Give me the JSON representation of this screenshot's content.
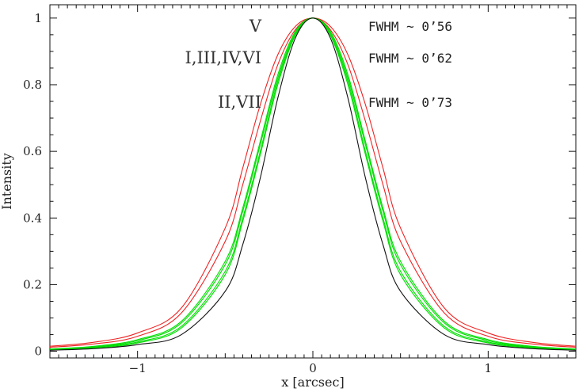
{
  "chart_data": {
    "type": "line",
    "title": "",
    "xlabel": "x [arcsec]",
    "ylabel": "Intensity",
    "xlim": [
      -1.5,
      1.5
    ],
    "ylim": [
      -0.02,
      1.04
    ],
    "grid": false,
    "legend": "none",
    "xticks": [
      -1,
      0,
      1
    ],
    "xtick_labels": [
      "−1",
      "0",
      "1"
    ],
    "yticks": [
      0,
      0.2,
      0.4,
      0.6,
      0.8,
      1
    ],
    "ytick_labels": [
      "0",
      "0.2",
      "0.4",
      "0.6",
      "0.8",
      "1"
    ],
    "x": [
      -1.5,
      -1.25,
      -1.0,
      -0.75,
      -0.5,
      -0.4,
      -0.3,
      -0.2,
      -0.1,
      0.0,
      0.1,
      0.2,
      0.3,
      0.4,
      0.5,
      0.75,
      1.0,
      1.25,
      1.5
    ],
    "series": [
      {
        "color": "#ee2222",
        "values": [
          0.015,
          0.027,
          0.055,
          0.13,
          0.37,
          0.55,
          0.74,
          0.89,
          0.975,
          1.0,
          0.975,
          0.89,
          0.74,
          0.55,
          0.37,
          0.13,
          0.055,
          0.027,
          0.015
        ]
      },
      {
        "color": "#ee2222",
        "values": [
          0.012,
          0.022,
          0.045,
          0.115,
          0.33,
          0.5,
          0.69,
          0.86,
          0.965,
          1.0,
          0.965,
          0.86,
          0.69,
          0.5,
          0.33,
          0.115,
          0.045,
          0.022,
          0.012
        ]
      },
      {
        "color": "#00dd00",
        "values": [
          0.007,
          0.015,
          0.035,
          0.09,
          0.27,
          0.43,
          0.63,
          0.83,
          0.96,
          1.0,
          0.96,
          0.83,
          0.63,
          0.43,
          0.27,
          0.09,
          0.035,
          0.015,
          0.007
        ]
      },
      {
        "color": "#00dd00",
        "values": [
          0.006,
          0.013,
          0.032,
          0.085,
          0.26,
          0.42,
          0.62,
          0.82,
          0.955,
          1.0,
          0.955,
          0.82,
          0.62,
          0.42,
          0.26,
          0.085,
          0.032,
          0.013,
          0.006
        ]
      },
      {
        "color": "#00dd00",
        "values": [
          0.005,
          0.012,
          0.028,
          0.075,
          0.24,
          0.4,
          0.6,
          0.81,
          0.95,
          1.0,
          0.95,
          0.81,
          0.6,
          0.4,
          0.24,
          0.075,
          0.028,
          0.012,
          0.005
        ]
      },
      {
        "color": "#00dd00",
        "values": [
          0.004,
          0.01,
          0.025,
          0.07,
          0.23,
          0.39,
          0.59,
          0.8,
          0.948,
          1.0,
          0.948,
          0.8,
          0.59,
          0.39,
          0.23,
          0.07,
          0.025,
          0.01,
          0.004
        ]
      },
      {
        "color": "#111111",
        "values": [
          0.003,
          0.008,
          0.02,
          0.05,
          0.18,
          0.32,
          0.52,
          0.76,
          0.94,
          1.0,
          0.94,
          0.76,
          0.52,
          0.32,
          0.18,
          0.05,
          0.02,
          0.008,
          0.003
        ]
      }
    ],
    "annotations": [
      {
        "group": "V",
        "fwhm": "FWHM ~ 0’56"
      },
      {
        "group": "I,III,IV,VI",
        "fwhm": "FWHM ~ 0’62"
      },
      {
        "group": "II,VII",
        "fwhm": "FWHM ~ 0’73"
      }
    ]
  }
}
